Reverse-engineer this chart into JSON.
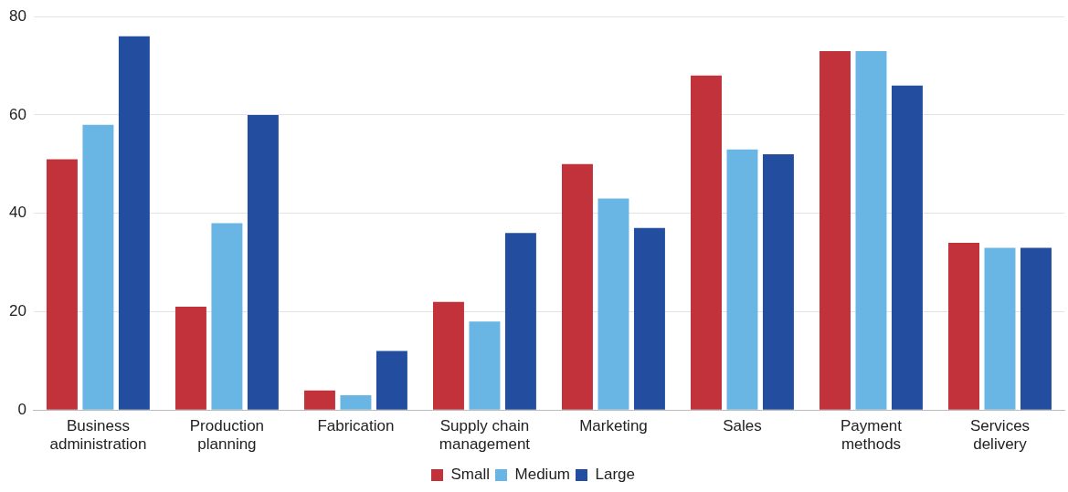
{
  "chart_data": {
    "type": "bar",
    "categories": [
      "Business administration",
      "Production planning",
      "Fabrication",
      "Supply chain management",
      "Marketing",
      "Sales",
      "Payment methods",
      "Services delivery"
    ],
    "series": [
      {
        "name": "Small",
        "color": "#c1323b",
        "values": [
          51,
          21,
          4,
          22,
          50,
          68,
          73,
          34
        ]
      },
      {
        "name": "Medium",
        "color": "#69b5e3",
        "values": [
          58,
          38,
          3,
          18,
          43,
          53,
          73,
          33
        ]
      },
      {
        "name": "Large",
        "color": "#234ea0",
        "values": [
          76,
          60,
          12,
          36,
          37,
          52,
          66,
          33
        ]
      }
    ],
    "ylim": [
      0,
      80
    ],
    "yticks": [
      0,
      20,
      40,
      60,
      80
    ],
    "grid": "y",
    "legend": "bottom"
  }
}
